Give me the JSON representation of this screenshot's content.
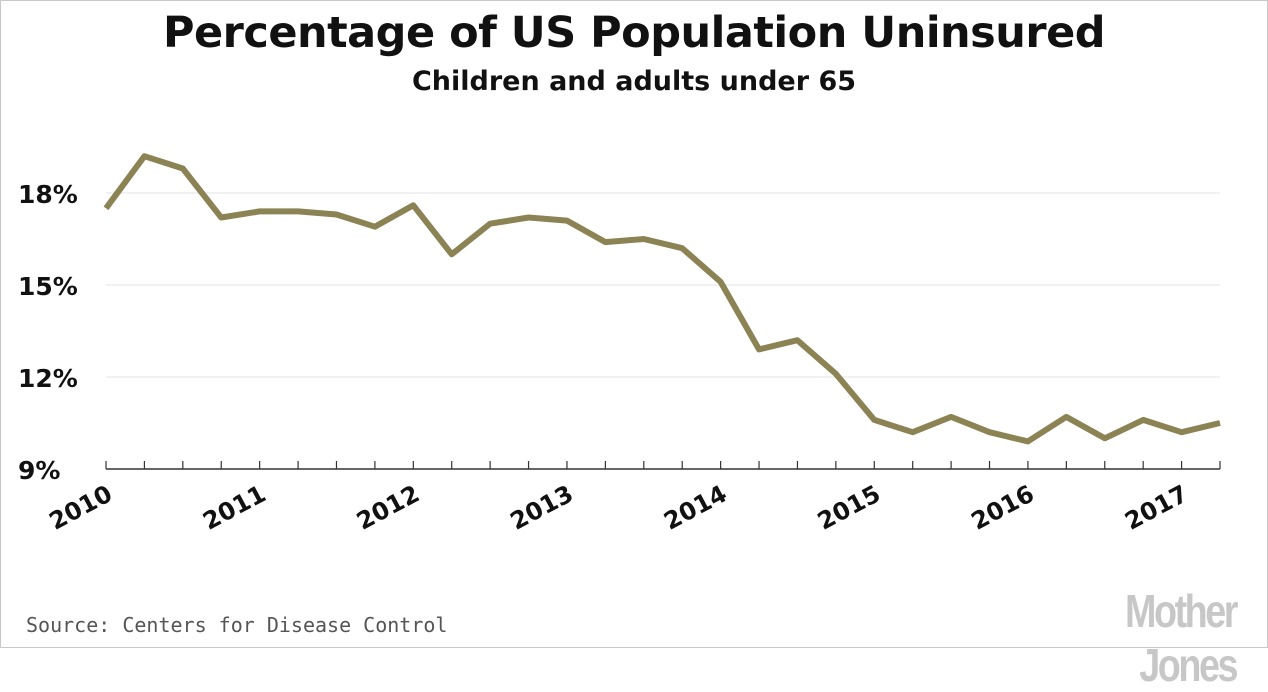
{
  "chart_data": {
    "type": "line",
    "title": "Percentage of US Population Uninsured",
    "subtitle": "Children and adults under 65",
    "xlabel": "",
    "ylabel": "",
    "xlim": [
      2010,
      2017.25
    ],
    "ylim": [
      9,
      18
    ],
    "yticks": [
      9,
      12,
      15,
      18
    ],
    "ytick_labels": [
      "9%",
      "12%",
      "15%",
      "18%"
    ],
    "xticks": [
      2010,
      2011,
      2012,
      2013,
      2014,
      2015,
      2016,
      2017
    ],
    "xtick_labels": [
      "2010",
      "2011",
      "2012",
      "2013",
      "2014",
      "2015",
      "2016",
      "2017"
    ],
    "grid": "horizontal",
    "legend": "none",
    "line_color": "#8c8355",
    "x": [
      2010,
      2010.25,
      2010.5,
      2010.75,
      2011,
      2011.25,
      2011.5,
      2011.75,
      2012,
      2012.25,
      2012.5,
      2012.75,
      2013,
      2013.25,
      2013.5,
      2013.75,
      2014,
      2014.25,
      2014.5,
      2014.75,
      2015,
      2015.25,
      2015.5,
      2015.75,
      2016,
      2016.25,
      2016.5,
      2016.75,
      2017,
      2017.25
    ],
    "series": [
      {
        "values": [
          17.5,
          19.2,
          18.8,
          17.2,
          17.4,
          17.4,
          17.3,
          16.9,
          17.6,
          16.0,
          17.0,
          17.2,
          17.1,
          16.4,
          16.5,
          16.2,
          15.1,
          12.9,
          13.2,
          12.1,
          10.6,
          10.2,
          10.7,
          10.2,
          9.9,
          10.7,
          10.0,
          10.6,
          10.2,
          10.5
        ]
      }
    ],
    "source": "Source: Centers for Disease Control",
    "logo": "Mother Jones"
  }
}
